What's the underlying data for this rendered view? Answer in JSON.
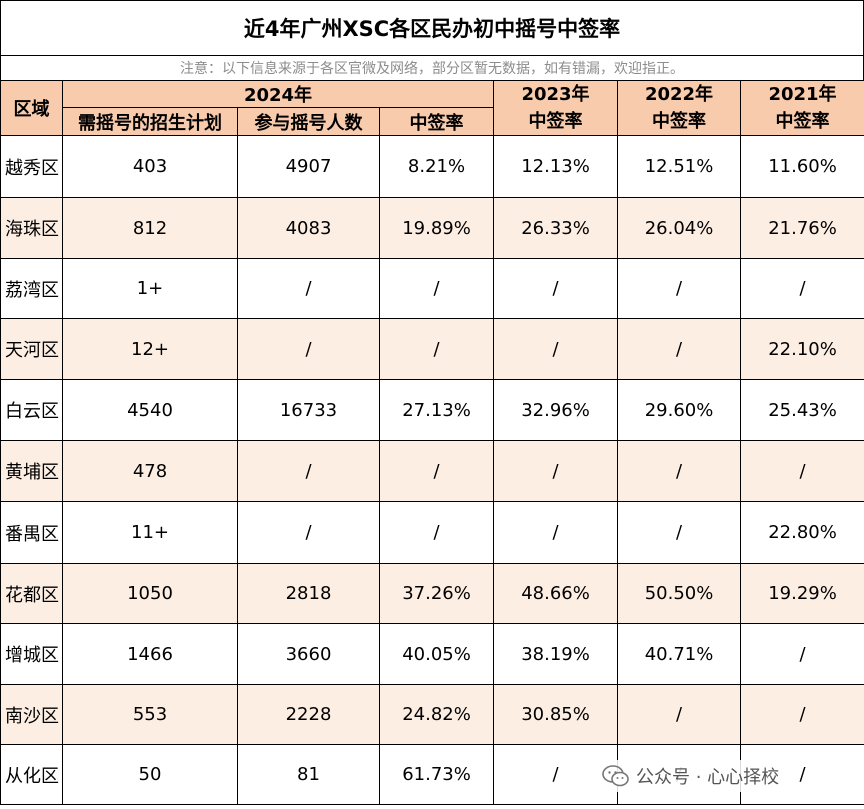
{
  "title": "近4年广州XSC各区民办初中摇号中签率",
  "note": "注意：以下信息来源于各区官微及网络，部分区暂无数据，如有错漏，欢迎指正。",
  "header": {
    "area": "区域",
    "y2024": "2024年",
    "plan": "需摇号的招生计划",
    "applicants": "参与摇号人数",
    "rate": "中签率",
    "y2023": "2023年",
    "y2022": "2022年",
    "y2021": "2021年"
  },
  "rows": [
    {
      "area": "越秀区",
      "plan": "403",
      "applicants": "4907",
      "r2024": "8.21%",
      "r2023": "12.13%",
      "r2022": "12.51%",
      "r2021": "11.60%"
    },
    {
      "area": "海珠区",
      "plan": "812",
      "applicants": "4083",
      "r2024": "19.89%",
      "r2023": "26.33%",
      "r2022": "26.04%",
      "r2021": "21.76%"
    },
    {
      "area": "荔湾区",
      "plan": "1+",
      "applicants": "/",
      "r2024": "/",
      "r2023": "/",
      "r2022": "/",
      "r2021": "/"
    },
    {
      "area": "天河区",
      "plan": "12+",
      "applicants": "/",
      "r2024": "/",
      "r2023": "/",
      "r2022": "/",
      "r2021": "22.10%"
    },
    {
      "area": "白云区",
      "plan": "4540",
      "applicants": "16733",
      "r2024": "27.13%",
      "r2023": "32.96%",
      "r2022": "29.60%",
      "r2021": "25.43%"
    },
    {
      "area": "黄埔区",
      "plan": "478",
      "applicants": "/",
      "r2024": "/",
      "r2023": "/",
      "r2022": "/",
      "r2021": "/"
    },
    {
      "area": "番禺区",
      "plan": "11+",
      "applicants": "/",
      "r2024": "/",
      "r2023": "/",
      "r2022": "/",
      "r2021": "22.80%"
    },
    {
      "area": "花都区",
      "plan": "1050",
      "applicants": "2818",
      "r2024": "37.26%",
      "r2023": "48.66%",
      "r2022": "50.50%",
      "r2021": "19.29%"
    },
    {
      "area": "增城区",
      "plan": "1466",
      "applicants": "3660",
      "r2024": "40.05%",
      "r2023": "38.19%",
      "r2022": "40.71%",
      "r2021": "/"
    },
    {
      "area": "南沙区",
      "plan": "553",
      "applicants": "2228",
      "r2024": "24.82%",
      "r2023": "30.85%",
      "r2022": "/",
      "r2021": "/"
    },
    {
      "area": "从化区",
      "plan": "50",
      "applicants": "81",
      "r2024": "61.73%",
      "r2023": "/",
      "r2022": "/",
      "r2021": "/"
    }
  ],
  "watermark": {
    "text": "公众号 · 心心择校",
    "icon": "wechat-icon"
  }
}
